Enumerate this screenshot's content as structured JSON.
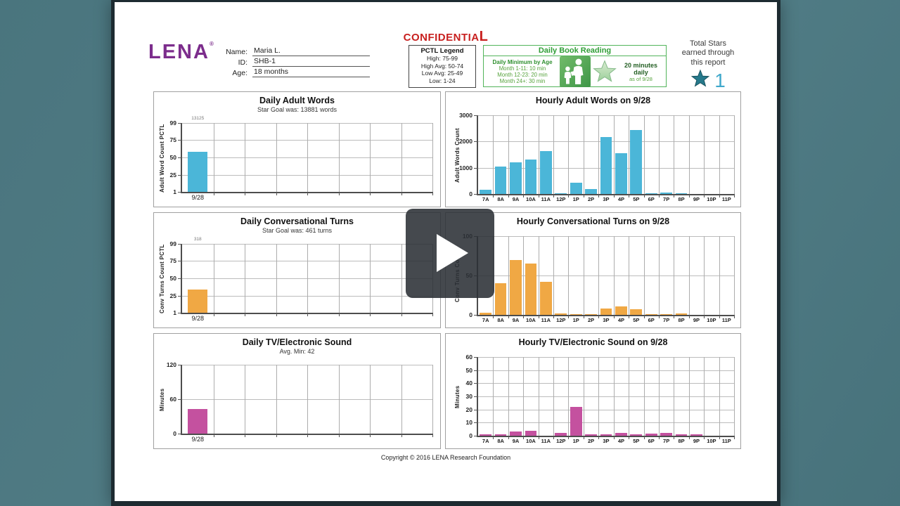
{
  "page": {
    "background_teal": "#4d7a83",
    "frame_color": "#1d2b31"
  },
  "header": {
    "logo": "LENA",
    "logo_reg": "®",
    "logo_color": "#7c2d8c",
    "confidential": {
      "main": "CONFIDENTIA",
      "last": "L",
      "color": "#c8201f"
    },
    "fields": [
      {
        "label": "Name:",
        "value": "Maria L."
      },
      {
        "label": "ID:",
        "value": "SHB-1"
      },
      {
        "label": "Age:",
        "value": "18 months"
      }
    ],
    "pctl_legend": {
      "title": "PCTL Legend",
      "lines": [
        "High: 75-99",
        "High Avg: 50-74",
        "Low Avg: 25-49",
        "Low: 1-24"
      ]
    },
    "book_reading": {
      "title": "Daily Book Reading",
      "min_by_age_title": "Daily Minimum by Age",
      "min_by_age_lines": [
        "Month 1-11: 10 min",
        "Month 12-23: 20 min",
        "Month 24+: 30 min"
      ],
      "goal": "20 minutes daily",
      "as_of": "as of 9/28",
      "accent_green": "#2f9e36"
    },
    "total_stars": {
      "caption_lines": [
        "Total Stars",
        "earned through",
        "this report"
      ],
      "count": "1",
      "star_color": "#26798b",
      "count_color": "#3fa8cb"
    }
  },
  "chart_data": [
    {
      "type": "bar",
      "kind": "daily",
      "title": "Daily Adult Words",
      "subtitle": "Star Goal was: 13881 words",
      "ylabel": "Adult Word Count PCTL",
      "yticks": [
        1,
        25,
        50,
        75,
        99
      ],
      "ymin": 1,
      "ymax": 99,
      "columns": 8,
      "categories": [
        "9/28"
      ],
      "values": [
        58
      ],
      "value_labels": [
        "13125"
      ],
      "color": "#4bb6d8"
    },
    {
      "type": "bar",
      "kind": "hourly",
      "title": "Hourly Adult Words on 9/28",
      "ylabel": "Adult Words Count",
      "yticks": [
        0,
        1000,
        2000,
        3000
      ],
      "ymin": 0,
      "ymax": 3000,
      "columns": 17,
      "categories": [
        "7A",
        "8A",
        "9A",
        "10A",
        "11A",
        "12P",
        "1P",
        "2P",
        "3P",
        "4P",
        "5P",
        "6P",
        "7P",
        "8P",
        "9P",
        "10P",
        "11P"
      ],
      "values": [
        150,
        1050,
        1200,
        1320,
        1630,
        40,
        420,
        200,
        2180,
        1560,
        2430,
        40,
        50,
        40,
        0,
        0,
        0
      ],
      "color": "#4bb6d8"
    },
    {
      "type": "bar",
      "kind": "daily",
      "title": "Daily Conversational Turns",
      "subtitle": "Star Goal was: 461 turns",
      "ylabel": "Conv Turns Count PCTL",
      "yticks": [
        1,
        25,
        50,
        75,
        99
      ],
      "ymin": 1,
      "ymax": 99,
      "columns": 8,
      "categories": [
        "9/28"
      ],
      "values": [
        34
      ],
      "value_labels": [
        "318"
      ],
      "color": "#f0a844"
    },
    {
      "type": "bar",
      "kind": "hourly",
      "title": "Hourly Conversational Turns on 9/28",
      "ylabel": "Conv Turns Count",
      "yticks": [
        0,
        50,
        100
      ],
      "ymin": 0,
      "ymax": 100,
      "columns": 17,
      "categories": [
        "7A",
        "8A",
        "9A",
        "10A",
        "11A",
        "12P",
        "1P",
        "2P",
        "3P",
        "4P",
        "5P",
        "6P",
        "7P",
        "8P",
        "9P",
        "10P",
        "11P"
      ],
      "values": [
        3,
        40,
        70,
        65,
        42,
        2,
        1,
        1,
        8,
        11,
        7,
        1,
        1,
        2,
        0,
        0,
        0
      ],
      "color": "#f0a844"
    },
    {
      "type": "bar",
      "kind": "daily",
      "title": "Daily TV/Electronic Sound",
      "subtitle": "Avg. Min:  42",
      "ylabel": "Minutes",
      "yticks": [
        0,
        60,
        120
      ],
      "ymin": 0,
      "ymax": 120,
      "columns": 8,
      "categories": [
        "9/28"
      ],
      "values": [
        43
      ],
      "value_labels": [
        ""
      ],
      "color": "#c4519f"
    },
    {
      "type": "bar",
      "kind": "hourly",
      "title": "Hourly TV/Electronic Sound on 9/28",
      "ylabel": "Minutes",
      "yticks": [
        0,
        10,
        20,
        30,
        40,
        50,
        60
      ],
      "ymin": 0,
      "ymax": 60,
      "columns": 17,
      "categories": [
        "7A",
        "8A",
        "9A",
        "10A",
        "11A",
        "12P",
        "1P",
        "2P",
        "3P",
        "4P",
        "5P",
        "6P",
        "7P",
        "8P",
        "9P",
        "10P",
        "11P"
      ],
      "values": [
        1,
        1,
        3,
        3.5,
        0,
        2,
        22,
        1,
        1,
        2,
        1,
        1.5,
        2,
        1,
        1,
        0,
        0
      ],
      "color": "#c4519f"
    }
  ],
  "footer": {
    "copyright": "Copyright © 2016 LENA Research Foundation"
  }
}
